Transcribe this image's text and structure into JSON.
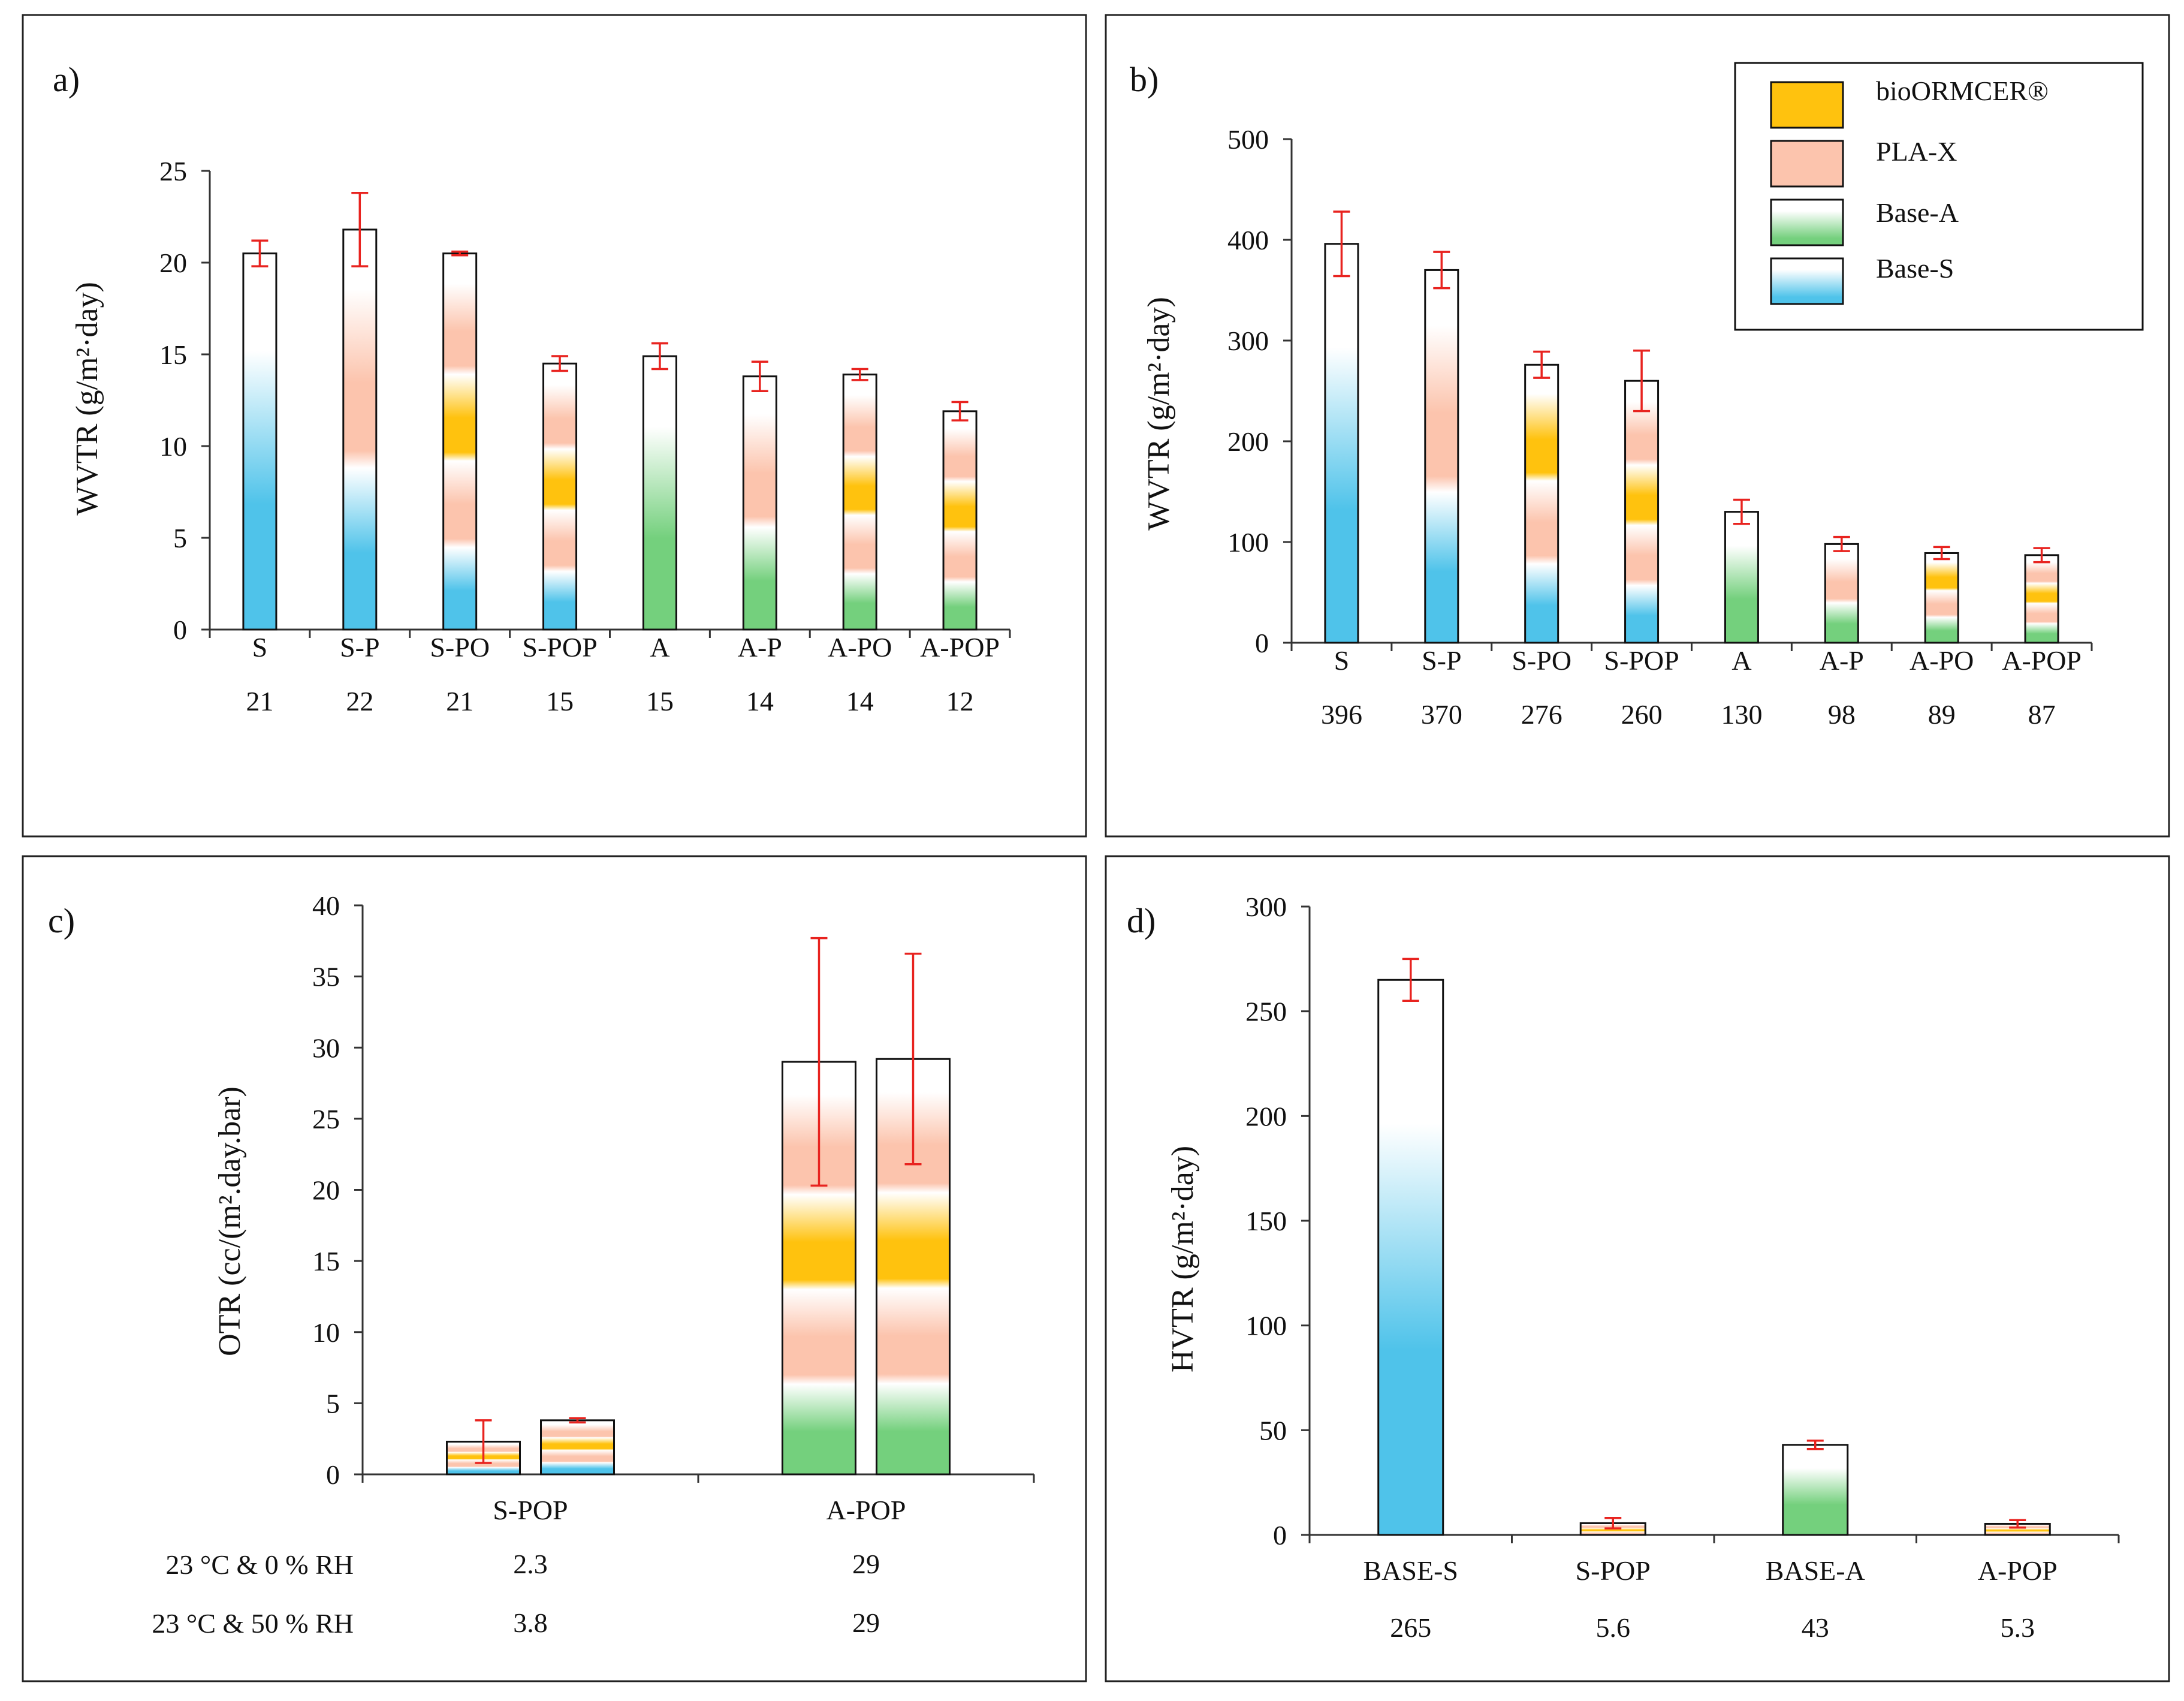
{
  "colors": {
    "bioormcer": "#ffc20e",
    "plax": "#fcc4ad",
    "base_a": "#74d07d",
    "base_s": "#4fc3ea",
    "error": "#e8231f"
  },
  "legend": {
    "entries": [
      {
        "label": "bioORMCER®",
        "swatch": "bioormcer"
      },
      {
        "label": "PLA-X",
        "swatch": "plax"
      },
      {
        "label": "Base-A",
        "swatch": "base_a"
      },
      {
        "label": "Base-S",
        "swatch": "base_s"
      }
    ]
  },
  "chart_data": [
    {
      "id": "a",
      "type": "bar",
      "panel_label": "a)",
      "ylabel": "WVTR (g/m²·day)",
      "ylim": [
        0,
        25
      ],
      "yticks": [
        0,
        5,
        10,
        15,
        20,
        25
      ],
      "categories": [
        "S",
        "S-P",
        "S-PO",
        "S-POP",
        "A",
        "A-P",
        "A-PO",
        "A-POP"
      ],
      "values": [
        20.5,
        21.8,
        20.5,
        14.5,
        14.9,
        13.8,
        13.9,
        11.9
      ],
      "errors": [
        0.7,
        2.0,
        0.1,
        0.4,
        0.7,
        0.8,
        0.3,
        0.5
      ],
      "value_labels": [
        "21",
        "22",
        "21",
        "15",
        "15",
        "14",
        "14",
        "12"
      ],
      "layers": [
        [
          "base_s"
        ],
        [
          "base_s",
          "plax"
        ],
        [
          "base_s",
          "plax",
          "bioormcer",
          "plax"
        ],
        [
          "base_s",
          "plax",
          "bioormcer",
          "plax"
        ],
        [
          "base_a"
        ],
        [
          "base_a",
          "plax"
        ],
        [
          "base_a",
          "plax",
          "bioormcer",
          "plax"
        ],
        [
          "base_a",
          "plax",
          "bioormcer",
          "plax"
        ]
      ]
    },
    {
      "id": "b",
      "type": "bar",
      "panel_label": "b)",
      "ylabel": "WVTR (g/m²·day)",
      "ylim": [
        0,
        500
      ],
      "yticks": [
        0,
        100,
        200,
        300,
        400,
        500
      ],
      "categories": [
        "S",
        "S-P",
        "S-PO",
        "S-POP",
        "A",
        "A-P",
        "A-PO",
        "A-POP"
      ],
      "values": [
        396,
        370,
        276,
        260,
        130,
        98,
        89,
        87
      ],
      "errors": [
        32,
        18,
        13,
        30,
        12,
        7,
        6,
        7
      ],
      "value_labels": [
        "396",
        "370",
        "276",
        "260",
        "130",
        "98",
        "89",
        "87"
      ],
      "layers": [
        [
          "base_s"
        ],
        [
          "base_s",
          "plax"
        ],
        [
          "base_s",
          "plax",
          "bioormcer"
        ],
        [
          "base_s",
          "plax",
          "bioormcer",
          "plax"
        ],
        [
          "base_a"
        ],
        [
          "base_a",
          "plax"
        ],
        [
          "base_a",
          "plax",
          "bioormcer"
        ],
        [
          "base_a",
          "plax",
          "bioormcer",
          "plax"
        ]
      ]
    },
    {
      "id": "c",
      "type": "bar",
      "panel_label": "c)",
      "ylabel": "OTR (cc/(m².day.bar)",
      "ylim": [
        0,
        40
      ],
      "yticks": [
        0,
        5,
        10,
        15,
        20,
        25,
        30,
        35,
        40
      ],
      "categories": [
        "S-POP",
        "A-POP"
      ],
      "series": [
        {
          "name": "23 °C & 0 % RH",
          "values": [
            2.3,
            29.0
          ],
          "errors": [
            1.5,
            8.7
          ],
          "value_labels": [
            "2.3",
            "29"
          ]
        },
        {
          "name": "23 °C & 50 % RH",
          "values": [
            3.8,
            29.2
          ],
          "errors": [
            0.15,
            7.4
          ],
          "value_labels": [
            "3.8",
            "29"
          ]
        }
      ],
      "layers": [
        [
          "base_s",
          "plax",
          "bioormcer",
          "plax"
        ],
        [
          "base_a",
          "plax",
          "bioormcer",
          "plax"
        ]
      ]
    },
    {
      "id": "d",
      "type": "bar",
      "panel_label": "d)",
      "ylabel": "HVTR (g/m²·day)",
      "ylim": [
        0,
        300
      ],
      "yticks": [
        0,
        50,
        100,
        150,
        200,
        250,
        300
      ],
      "categories": [
        "BASE-S",
        "S-POP",
        "BASE-A",
        "A-POP"
      ],
      "values": [
        265,
        5.6,
        43,
        5.3
      ],
      "errors": [
        10,
        2.5,
        2,
        1.8
      ],
      "value_labels": [
        "265",
        "5.6",
        "43",
        "5.3"
      ],
      "layers": [
        [
          "base_s"
        ],
        [
          "plax",
          "bioormcer",
          "plax"
        ],
        [
          "base_a"
        ],
        [
          "plax",
          "bioormcer",
          "plax"
        ]
      ]
    }
  ]
}
